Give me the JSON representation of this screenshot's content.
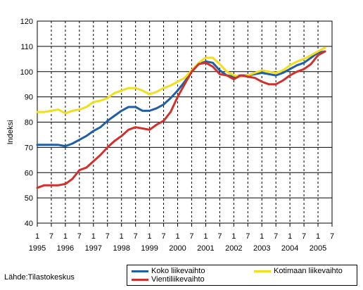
{
  "chart_data": {
    "type": "line",
    "title": "",
    "ylabel": "Indeksi",
    "xlabel": "",
    "ylim": [
      40,
      120
    ],
    "xlim": [
      1995.0,
      2005.5
    ],
    "y_ticks": [
      40,
      50,
      60,
      70,
      80,
      90,
      100,
      110,
      120
    ],
    "x_month_ticks": [
      "1",
      "7",
      "1",
      "7",
      "1",
      "7",
      "1",
      "7",
      "1",
      "7",
      "1",
      "7",
      "1",
      "7",
      "1",
      "7",
      "1",
      "7",
      "1",
      "7",
      "1",
      "7"
    ],
    "x_year_labels": [
      "1995",
      "1996",
      "1997",
      "1998",
      "1999",
      "2000",
      "2001",
      "2002",
      "2003",
      "2004",
      "2005"
    ],
    "grid": true,
    "source": "Lähde:Tilastokeskus",
    "series": [
      {
        "name": "Koko liikevaihto",
        "color": "#1f5fa6",
        "points": [
          [
            1995.0,
            71
          ],
          [
            1995.25,
            71
          ],
          [
            1995.5,
            71
          ],
          [
            1995.75,
            71
          ],
          [
            1996.0,
            70.5
          ],
          [
            1996.25,
            71.5
          ],
          [
            1996.5,
            73
          ],
          [
            1996.75,
            74.5
          ],
          [
            1997.0,
            76.5
          ],
          [
            1997.25,
            78
          ],
          [
            1997.5,
            80.5
          ],
          [
            1997.75,
            82.5
          ],
          [
            1998.0,
            84.5
          ],
          [
            1998.25,
            86
          ],
          [
            1998.5,
            86
          ],
          [
            1998.75,
            84.5
          ],
          [
            1999.0,
            84.5
          ],
          [
            1999.25,
            85.5
          ],
          [
            1999.5,
            87
          ],
          [
            1999.75,
            89.5
          ],
          [
            2000.0,
            92.5
          ],
          [
            2000.25,
            96
          ],
          [
            2000.5,
            100
          ],
          [
            2000.75,
            103
          ],
          [
            2001.0,
            104
          ],
          [
            2001.25,
            103.5
          ],
          [
            2001.5,
            100.5
          ],
          [
            2001.75,
            98.5
          ],
          [
            2002.0,
            98
          ],
          [
            2002.25,
            98.5
          ],
          [
            2002.5,
            98.5
          ],
          [
            2002.75,
            99
          ],
          [
            2003.0,
            99.5
          ],
          [
            2003.25,
            99
          ],
          [
            2003.5,
            98.5
          ],
          [
            2003.75,
            99.5
          ],
          [
            2004.0,
            101
          ],
          [
            2004.25,
            102.5
          ],
          [
            2004.5,
            103.5
          ],
          [
            2004.75,
            105.5
          ],
          [
            2005.0,
            107.5
          ],
          [
            2005.25,
            108
          ]
        ]
      },
      {
        "name": "Kotimaan liikevaihto",
        "color": "#f2de1b",
        "points": [
          [
            1995.0,
            84
          ],
          [
            1995.25,
            84
          ],
          [
            1995.5,
            84.5
          ],
          [
            1995.75,
            85
          ],
          [
            1996.0,
            83.5
          ],
          [
            1996.25,
            84.5
          ],
          [
            1996.5,
            85
          ],
          [
            1996.75,
            86
          ],
          [
            1997.0,
            88
          ],
          [
            1997.25,
            88.5
          ],
          [
            1997.5,
            89.5
          ],
          [
            1997.75,
            91.5
          ],
          [
            1998.0,
            92.5
          ],
          [
            1998.25,
            93.5
          ],
          [
            1998.5,
            93.5
          ],
          [
            1998.75,
            92.5
          ],
          [
            1999.0,
            91
          ],
          [
            1999.25,
            92
          ],
          [
            1999.5,
            93.5
          ],
          [
            1999.75,
            94.5
          ],
          [
            2000.0,
            96
          ],
          [
            2000.25,
            97.5
          ],
          [
            2000.5,
            100.5
          ],
          [
            2000.75,
            103.5
          ],
          [
            2001.0,
            105.5
          ],
          [
            2001.25,
            105.5
          ],
          [
            2001.5,
            103
          ],
          [
            2001.75,
            100
          ],
          [
            2002.0,
            98.5
          ],
          [
            2002.25,
            98
          ],
          [
            2002.5,
            98.5
          ],
          [
            2002.75,
            99.5
          ],
          [
            2003.0,
            100.5
          ],
          [
            2003.25,
            100
          ],
          [
            2003.5,
            99.5
          ],
          [
            2003.75,
            100.5
          ],
          [
            2004.0,
            102.5
          ],
          [
            2004.25,
            104
          ],
          [
            2004.5,
            105
          ],
          [
            2004.75,
            106.5
          ],
          [
            2005.0,
            108
          ],
          [
            2005.25,
            109.5
          ]
        ]
      },
      {
        "name": "Vientiliikevaihto",
        "color": "#d2302d",
        "points": [
          [
            1995.0,
            54
          ],
          [
            1995.25,
            55
          ],
          [
            1995.5,
            55
          ],
          [
            1995.75,
            55
          ],
          [
            1996.0,
            55.5
          ],
          [
            1996.25,
            57.5
          ],
          [
            1996.5,
            61
          ],
          [
            1996.75,
            62
          ],
          [
            1997.0,
            64.5
          ],
          [
            1997.25,
            67
          ],
          [
            1997.5,
            70
          ],
          [
            1997.75,
            72.5
          ],
          [
            1998.0,
            74.5
          ],
          [
            1998.25,
            77
          ],
          [
            1998.5,
            78
          ],
          [
            1998.75,
            77.5
          ],
          [
            1999.0,
            77
          ],
          [
            1999.25,
            79
          ],
          [
            1999.5,
            80.5
          ],
          [
            1999.75,
            84
          ],
          [
            2000.0,
            90
          ],
          [
            2000.25,
            95
          ],
          [
            2000.5,
            100
          ],
          [
            2000.75,
            103
          ],
          [
            2001.0,
            103.5
          ],
          [
            2001.25,
            102
          ],
          [
            2001.5,
            99
          ],
          [
            2001.75,
            98.5
          ],
          [
            2002.0,
            97
          ],
          [
            2002.25,
            98.5
          ],
          [
            2002.5,
            98
          ],
          [
            2002.75,
            97.5
          ],
          [
            2003.0,
            96
          ],
          [
            2003.25,
            95
          ],
          [
            2003.5,
            95
          ],
          [
            2003.75,
            96.5
          ],
          [
            2004.0,
            98.5
          ],
          [
            2004.25,
            100
          ],
          [
            2004.5,
            101
          ],
          [
            2004.75,
            103
          ],
          [
            2005.0,
            106.5
          ],
          [
            2005.25,
            108
          ]
        ]
      }
    ],
    "legend": {
      "items": [
        {
          "label": "Koko liikevaihto",
          "color": "#1f5fa6"
        },
        {
          "label": "Kotimaan liikevaihto",
          "color": "#f2de1b"
        },
        {
          "label": "Vientiliikevaihto",
          "color": "#d2302d"
        }
      ]
    }
  }
}
